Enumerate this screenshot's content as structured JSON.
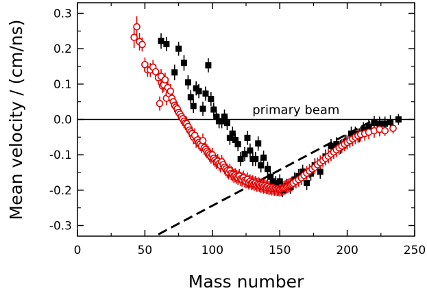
{
  "chart_data": {
    "type": "scatter",
    "xlabel": "Mass number",
    "ylabel": "Mean velocity / (cm/ns)",
    "xlim": [
      0,
      250
    ],
    "ylim": [
      -0.33,
      0.33
    ],
    "x_ticks": [
      0,
      50,
      100,
      150,
      200,
      250
    ],
    "x_tick_labels": [
      "0",
      "50",
      "100",
      "150",
      "200",
      "250"
    ],
    "y_ticks": [
      -0.3,
      -0.2,
      -0.1,
      0.0,
      0.1,
      0.2,
      0.3
    ],
    "y_tick_labels": [
      "-0.3",
      "-0.2",
      "-0.1",
      "0.0",
      "0.1",
      "0.2",
      "0.3"
    ],
    "grid": false,
    "annotations": [
      {
        "text": "primary beam",
        "x": 162,
        "y": 0.012
      }
    ],
    "reference_lines": [
      {
        "style": "solid",
        "color": "#000000",
        "x": [
          0,
          250
        ],
        "y": [
          0.0,
          0.0
        ]
      },
      {
        "style": "dashed",
        "color": "#000000",
        "x": [
          60,
          218
        ],
        "y": [
          -0.325,
          -0.005
        ]
      }
    ],
    "series": [
      {
        "marker": "filled-square",
        "color": "#000000",
        "points": [
          [
            62,
            0.222,
            0.022
          ],
          [
            66,
            0.213,
            0.02
          ],
          [
            72,
            0.133,
            0.022
          ],
          [
            75,
            0.2,
            0.02
          ],
          [
            79,
            0.16,
            0.022
          ],
          [
            82,
            0.105,
            0.02
          ],
          [
            84,
            0.063,
            0.02
          ],
          [
            86,
            0.038,
            0.02
          ],
          [
            88,
            0.088,
            0.02
          ],
          [
            90,
            0.08,
            0.02
          ],
          [
            93,
            0.03,
            0.02
          ],
          [
            95,
            0.073,
            0.02
          ],
          [
            97,
            0.153,
            0.02
          ],
          [
            99,
            0.058,
            0.02
          ],
          [
            101,
            0.028,
            0.02
          ],
          [
            103,
            0.008,
            0.02
          ],
          [
            105,
            -0.005,
            0.02
          ],
          [
            107,
            -0.005,
            0.02
          ],
          [
            109,
            0.008,
            0.02
          ],
          [
            111,
            -0.01,
            0.02
          ],
          [
            113,
            -0.052,
            0.02
          ],
          [
            115,
            -0.04,
            0.02
          ],
          [
            117,
            -0.058,
            0.02
          ],
          [
            119,
            -0.07,
            0.02
          ],
          [
            121,
            -0.112,
            0.02
          ],
          [
            124,
            -0.098,
            0.02
          ],
          [
            126,
            -0.052,
            0.02
          ],
          [
            128,
            -0.088,
            0.02
          ],
          [
            130,
            -0.112,
            0.02
          ],
          [
            132,
            -0.112,
            0.02
          ],
          [
            134,
            -0.068,
            0.02
          ],
          [
            136,
            -0.13,
            0.02
          ],
          [
            138,
            -0.108,
            0.02
          ],
          [
            141,
            -0.14,
            0.02
          ],
          [
            143,
            -0.162,
            0.02
          ],
          [
            145,
            -0.175,
            0.02
          ],
          [
            147,
            -0.18,
            0.02
          ],
          [
            150,
            -0.175,
            0.02
          ],
          [
            152,
            -0.2,
            0.02
          ],
          [
            155,
            -0.188,
            0.02
          ],
          [
            158,
            -0.19,
            0.02
          ],
          [
            161,
            -0.17,
            0.02
          ],
          [
            164,
            -0.16,
            0.02
          ],
          [
            167,
            -0.148,
            0.02
          ],
          [
            170,
            -0.18,
            0.02
          ],
          [
            173,
            -0.153,
            0.02
          ],
          [
            176,
            -0.13,
            0.02
          ],
          [
            180,
            -0.148,
            0.02
          ],
          [
            184,
            -0.105,
            0.02
          ],
          [
            188,
            -0.075,
            0.02
          ],
          [
            192,
            -0.07,
            0.02
          ],
          [
            195,
            -0.078,
            0.02
          ],
          [
            199,
            -0.063,
            0.02
          ],
          [
            203,
            -0.04,
            0.02
          ],
          [
            206,
            -0.04,
            0.02
          ],
          [
            209,
            -0.045,
            0.02
          ],
          [
            212,
            -0.028,
            0.02
          ],
          [
            216,
            -0.02,
            0.02
          ],
          [
            220,
            -0.01,
            0.02
          ],
          [
            224,
            -0.012,
            0.02
          ],
          [
            228,
            -0.012,
            0.02
          ],
          [
            232,
            -0.008,
            0.02
          ],
          [
            238,
            0.0,
            0.015
          ]
        ]
      },
      {
        "marker": "open-circle",
        "color": "#e00000",
        "points": [
          [
            42,
            0.232,
            0.03
          ],
          [
            44,
            0.262,
            0.03
          ],
          [
            46,
            0.22,
            0.025
          ],
          [
            48,
            0.212,
            0.02
          ],
          [
            50,
            0.155,
            0.02
          ],
          [
            52,
            0.14,
            0.02
          ],
          [
            54,
            0.14,
            0.02
          ],
          [
            56,
            0.148,
            0.02
          ],
          [
            58,
            0.135,
            0.02
          ],
          [
            60,
            0.118,
            0.02
          ],
          [
            61,
            0.045,
            0.02
          ],
          [
            62,
            0.122,
            0.02
          ],
          [
            63,
            0.095,
            0.02
          ],
          [
            64,
            0.098,
            0.02
          ],
          [
            65,
            0.112,
            0.02
          ],
          [
            66,
            0.06,
            0.02
          ],
          [
            67,
            0.09,
            0.02
          ],
          [
            68,
            0.072,
            0.02
          ],
          [
            69,
            0.08,
            0.02
          ],
          [
            70,
            0.06,
            0.02
          ],
          [
            71,
            0.05,
            0.02
          ],
          [
            72,
            0.04,
            0.02
          ],
          [
            73,
            0.035,
            0.02
          ],
          [
            74,
            0.03,
            0.02
          ],
          [
            75,
            0.02,
            0.02
          ],
          [
            76,
            0.015,
            0.02
          ],
          [
            77,
            0.008,
            0.02
          ],
          [
            78,
            0.002,
            0.02
          ],
          [
            79,
            -0.005,
            0.02
          ],
          [
            80,
            -0.01,
            0.02
          ],
          [
            81,
            -0.012,
            0.02
          ],
          [
            82,
            -0.02,
            0.02
          ],
          [
            83,
            -0.03,
            0.02
          ],
          [
            84,
            -0.035,
            0.02
          ],
          [
            85,
            -0.04,
            0.02
          ],
          [
            86,
            -0.05,
            0.02
          ],
          [
            87,
            -0.045,
            0.02
          ],
          [
            88,
            -0.06,
            0.02
          ],
          [
            89,
            -0.058,
            0.02
          ],
          [
            90,
            -0.065,
            0.02
          ],
          [
            91,
            -0.07,
            0.02
          ],
          [
            92,
            -0.075,
            0.02
          ],
          [
            93,
            -0.06,
            0.02
          ],
          [
            94,
            -0.08,
            0.02
          ],
          [
            95,
            -0.085,
            0.02
          ],
          [
            96,
            -0.09,
            0.02
          ],
          [
            97,
            -0.095,
            0.02
          ],
          [
            98,
            -0.1,
            0.02
          ],
          [
            99,
            -0.105,
            0.02
          ],
          [
            100,
            -0.1,
            0.02
          ],
          [
            101,
            -0.11,
            0.02
          ],
          [
            102,
            -0.115,
            0.02
          ],
          [
            103,
            -0.12,
            0.02
          ],
          [
            104,
            -0.118,
            0.02
          ],
          [
            105,
            -0.125,
            0.02
          ],
          [
            106,
            -0.13,
            0.02
          ],
          [
            107,
            -0.12,
            0.02
          ],
          [
            108,
            -0.128,
            0.02
          ],
          [
            109,
            -0.135,
            0.02
          ],
          [
            110,
            -0.14,
            0.02
          ],
          [
            111,
            -0.145,
            0.02
          ],
          [
            112,
            -0.15,
            0.02
          ],
          [
            113,
            -0.145,
            0.02
          ],
          [
            114,
            -0.152,
            0.02
          ],
          [
            115,
            -0.155,
            0.02
          ],
          [
            116,
            -0.16,
            0.02
          ],
          [
            117,
            -0.158,
            0.02
          ],
          [
            118,
            -0.162,
            0.02
          ],
          [
            119,
            -0.165,
            0.02
          ],
          [
            120,
            -0.16,
            0.02
          ],
          [
            121,
            -0.168,
            0.02
          ],
          [
            122,
            -0.17,
            0.02
          ],
          [
            123,
            -0.165,
            0.02
          ],
          [
            124,
            -0.172,
            0.02
          ],
          [
            125,
            -0.175,
            0.02
          ],
          [
            126,
            -0.17,
            0.02
          ],
          [
            127,
            -0.178,
            0.02
          ],
          [
            128,
            -0.175,
            0.02
          ],
          [
            129,
            -0.18,
            0.02
          ],
          [
            130,
            -0.178,
            0.02
          ],
          [
            131,
            -0.182,
            0.02
          ],
          [
            132,
            -0.18,
            0.02
          ],
          [
            133,
            -0.185,
            0.02
          ],
          [
            134,
            -0.183,
            0.02
          ],
          [
            135,
            -0.185,
            0.02
          ],
          [
            136,
            -0.188,
            0.02
          ],
          [
            137,
            -0.186,
            0.02
          ],
          [
            138,
            -0.19,
            0.02
          ],
          [
            139,
            -0.188,
            0.02
          ],
          [
            140,
            -0.192,
            0.02
          ],
          [
            141,
            -0.19,
            0.02
          ],
          [
            142,
            -0.194,
            0.02
          ],
          [
            143,
            -0.192,
            0.02
          ],
          [
            144,
            -0.195,
            0.02
          ],
          [
            145,
            -0.193,
            0.02
          ],
          [
            146,
            -0.196,
            0.02
          ],
          [
            147,
            -0.195,
            0.02
          ],
          [
            148,
            -0.197,
            0.02
          ],
          [
            149,
            -0.196,
            0.02
          ],
          [
            150,
            -0.198,
            0.02
          ],
          [
            151,
            -0.197,
            0.02
          ],
          [
            152,
            -0.195,
            0.02
          ],
          [
            153,
            -0.194,
            0.02
          ],
          [
            154,
            -0.192,
            0.02
          ],
          [
            155,
            -0.19,
            0.02
          ],
          [
            156,
            -0.188,
            0.02
          ],
          [
            157,
            -0.186,
            0.02
          ],
          [
            158,
            -0.185,
            0.02
          ],
          [
            159,
            -0.183,
            0.02
          ],
          [
            160,
            -0.18,
            0.02
          ],
          [
            162,
            -0.175,
            0.02
          ],
          [
            164,
            -0.17,
            0.02
          ],
          [
            166,
            -0.165,
            0.02
          ],
          [
            168,
            -0.158,
            0.02
          ],
          [
            170,
            -0.152,
            0.02
          ],
          [
            172,
            -0.146,
            0.02
          ],
          [
            174,
            -0.14,
            0.02
          ],
          [
            176,
            -0.135,
            0.02
          ],
          [
            178,
            -0.128,
            0.02
          ],
          [
            180,
            -0.122,
            0.02
          ],
          [
            182,
            -0.116,
            0.02
          ],
          [
            184,
            -0.11,
            0.02
          ],
          [
            186,
            -0.104,
            0.02
          ],
          [
            188,
            -0.098,
            0.02
          ],
          [
            190,
            -0.092,
            0.02
          ],
          [
            192,
            -0.086,
            0.02
          ],
          [
            194,
            -0.08,
            0.02
          ],
          [
            196,
            -0.075,
            0.02
          ],
          [
            198,
            -0.07,
            0.02
          ],
          [
            200,
            -0.065,
            0.02
          ],
          [
            202,
            -0.06,
            0.02
          ],
          [
            204,
            -0.055,
            0.02
          ],
          [
            206,
            -0.05,
            0.02
          ],
          [
            208,
            -0.046,
            0.02
          ],
          [
            210,
            -0.042,
            0.02
          ],
          [
            213,
            -0.04,
            0.02
          ],
          [
            216,
            -0.036,
            0.02
          ],
          [
            220,
            -0.032,
            0.02
          ],
          [
            224,
            -0.028,
            0.02
          ],
          [
            228,
            -0.032,
            0.015
          ],
          [
            234,
            -0.025,
            0.015
          ]
        ]
      }
    ]
  }
}
